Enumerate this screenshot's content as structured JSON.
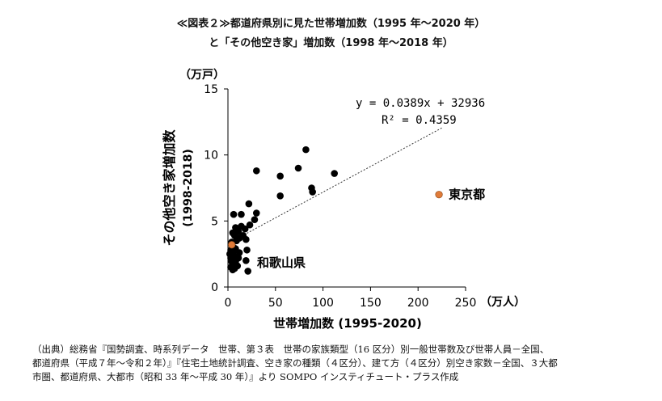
{
  "title_line1": "≪図表２≫都道府県別に見た世帯増加数（1995 年～2020 年）",
  "title_line2": "と「その他空き家」増加数（1998 年～2018 年）",
  "chart_data": {
    "type": "scatter",
    "ylabel_unit": "（万戸）",
    "xlabel_unit": "（万人）",
    "ylabel_line1": "その他空き家増加数",
    "ylabel_line2": "(1998-2018)",
    "xlabel": "世帯増加数 (1995-2020)",
    "xlim": [
      0,
      250
    ],
    "ylim": [
      0,
      15
    ],
    "x_ticks": [
      0,
      50,
      100,
      150,
      200,
      250
    ],
    "y_ticks": [
      0,
      5,
      10,
      15
    ],
    "trendline": {
      "equation": "y = 0.0389x + 32936",
      "r2": "R² = 0.4359",
      "x_range": [
        5,
        225
      ]
    },
    "points": [
      {
        "x": 82,
        "y": 10.4
      },
      {
        "x": 74,
        "y": 9.0
      },
      {
        "x": 112,
        "y": 8.6
      },
      {
        "x": 30,
        "y": 8.8
      },
      {
        "x": 55,
        "y": 8.4
      },
      {
        "x": 88,
        "y": 7.5
      },
      {
        "x": 89,
        "y": 7.2
      },
      {
        "x": 55,
        "y": 6.9
      },
      {
        "x": 22,
        "y": 6.3
      },
      {
        "x": 30,
        "y": 5.6
      },
      {
        "x": 28,
        "y": 5.1
      },
      {
        "x": 6,
        "y": 5.5
      },
      {
        "x": 14,
        "y": 5.5
      },
      {
        "x": 23,
        "y": 4.7
      },
      {
        "x": 8,
        "y": 4.5
      },
      {
        "x": 14,
        "y": 4.6
      },
      {
        "x": 18,
        "y": 4.4
      },
      {
        "x": 11,
        "y": 4.2
      },
      {
        "x": 5,
        "y": 4.1
      },
      {
        "x": 7,
        "y": 3.9
      },
      {
        "x": 16,
        "y": 3.9
      },
      {
        "x": 12,
        "y": 3.7
      },
      {
        "x": 19,
        "y": 3.6
      },
      {
        "x": 9,
        "y": 3.5
      },
      {
        "x": 4,
        "y": 3.4
      },
      {
        "x": 6,
        "y": 3.0
      },
      {
        "x": 3,
        "y": 2.8
      },
      {
        "x": 8,
        "y": 2.9
      },
      {
        "x": 20,
        "y": 2.8
      },
      {
        "x": 5,
        "y": 2.6
      },
      {
        "x": 7,
        "y": 2.3
      },
      {
        "x": 3,
        "y": 2.2
      },
      {
        "x": 9,
        "y": 2.1
      },
      {
        "x": 11,
        "y": 2.2
      },
      {
        "x": 4,
        "y": 1.9
      },
      {
        "x": 6,
        "y": 1.7
      },
      {
        "x": 8,
        "y": 1.8
      },
      {
        "x": 19,
        "y": 2.0
      },
      {
        "x": 3,
        "y": 1.5
      },
      {
        "x": 7,
        "y": 1.4
      },
      {
        "x": 5,
        "y": 1.3
      },
      {
        "x": 10,
        "y": 1.6
      },
      {
        "x": 21,
        "y": 1.2
      },
      {
        "x": 2,
        "y": 2.5
      },
      {
        "x": 12,
        "y": 2.6
      }
    ],
    "highlights": [
      {
        "label": "東京都",
        "x": 222,
        "y": 7.0,
        "color": "#E07B39"
      },
      {
        "label": "和歌山県",
        "x": 4,
        "y": 3.2,
        "color": "#E07B39"
      }
    ]
  },
  "source_lines": [
    "（出典）総務省『国勢調査、時系列データ　世帯、第３表　世帯の家族類型（16 区分）別一般世帯数及び世帯人員－全国、",
    "都道府県（平成７年～令和２年）』『住宅土地統計調査、空き家の種類（４区分）、建て方（４区分）別空き家数－全国、３大都",
    "市圏、都道府県、大都市（昭和 33 年～平成 30 年）』より SOMPO インスティチュート・プラス作成"
  ]
}
